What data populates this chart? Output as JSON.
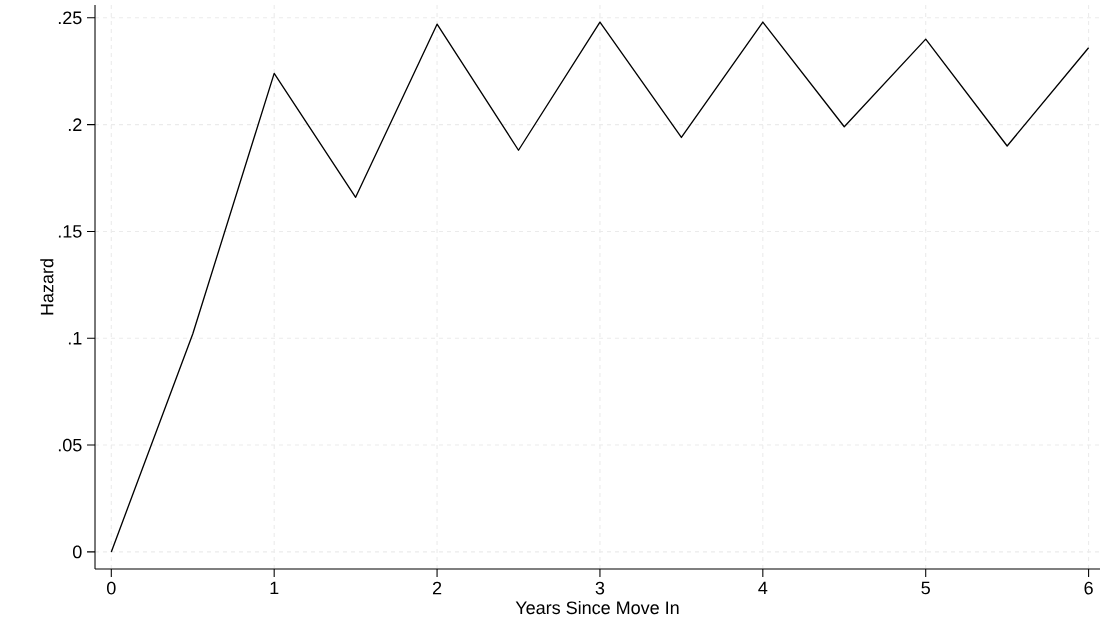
{
  "chart_data": {
    "type": "line",
    "xlabel": "Years Since Move In",
    "ylabel": "Hazard",
    "x": [
      0,
      0.5,
      1,
      1.5,
      2,
      2.5,
      3,
      3.5,
      4,
      4.5,
      5,
      5.5,
      6
    ],
    "series": [
      {
        "color": "#000000",
        "values": [
          0,
          0.102,
          0.224,
          0.166,
          0.247,
          0.188,
          0.248,
          0.194,
          0.248,
          0.199,
          0.24,
          0.19,
          0.236
        ]
      }
    ],
    "xlim": [
      -0.1,
      6.07
    ],
    "ylim": [
      -0.008,
      0.256
    ],
    "xticks": [
      0,
      1,
      2,
      3,
      4,
      5,
      6
    ],
    "yticks": [
      0,
      {
        "value": 0.05,
        "label": ".05"
      },
      {
        "value": 0.1,
        "label": ".1"
      },
      {
        "value": 0.15,
        "label": ".15"
      },
      {
        "value": 0.2,
        "label": ".2"
      },
      {
        "value": 0.25,
        "label": ".25"
      }
    ],
    "grid": true,
    "marker": "none",
    "line_style": "solid"
  }
}
